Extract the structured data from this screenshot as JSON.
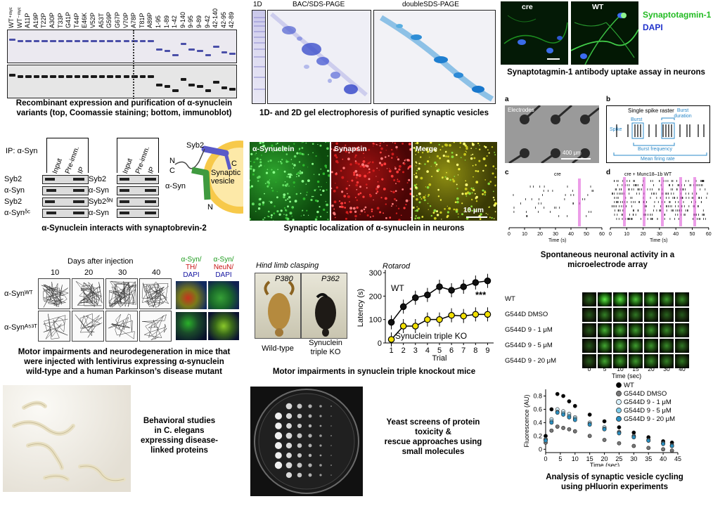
{
  "panels": {
    "gel_variants": {
      "lane_labels": [
        "WT⁺ᵐʸᶜ",
        "WT⁻ᵐʸᶜ",
        "A11P",
        "A19P",
        "T22P",
        "A30P",
        "T33P",
        "G41P",
        "T44P",
        "E46K",
        "V52P",
        "A53T",
        "G59P",
        "G67P",
        "V70P",
        "A78P",
        "T81P",
        "A89P",
        "1-95",
        "1-89",
        "1-42",
        "9-140",
        "9-95",
        "9-89",
        "9-42",
        "42-140",
        "42-95",
        "42-89"
      ],
      "caption_line1": "Recombinant expression and purification of α-synuclein",
      "caption_line2": "variants (top, Coomassie staining; bottom, immunoblot)"
    },
    "gel_2d": {
      "label_1d": "1D",
      "label_bac": "BAC/SDS-PAGE",
      "label_double": "doubleSDS-PAGE",
      "caption": "1D- and 2D gel electrophoresis of purified synaptic vesicles"
    },
    "synaptotagmin": {
      "label_cre": "cre",
      "label_wt": "WT",
      "legend_syt": "Synaptotagmin-1",
      "legend_dapi": "DAPI",
      "caption": "Synaptotagmin-1 antibody uptake assay in neurons"
    },
    "ip": {
      "ip_label": "IP: α-Syn",
      "col_labels": [
        "Input",
        "Pre-imm.",
        "IP"
      ],
      "rows_left": [
        "Syb2",
        "α-Syn",
        "Syb2",
        "α-Synᵟᶜ"
      ],
      "rows_right": [
        "Syb2",
        "α-Syn",
        "Syb2ᵟᴺ",
        "α-Syn"
      ],
      "schematic_syb2": "Syb2",
      "schematic_n": "N",
      "schematic_c": "C",
      "schematic_asyn": "α-Syn",
      "schematic_c2": "C",
      "schematic_n2": "N",
      "schematic_vesicle": "Synaptic vesicle",
      "caption": "α-Synuclein interacts with synaptobrevin-2"
    },
    "localization": {
      "label_asyn": "α-Synuclein",
      "label_synapsin": "Synapsin",
      "label_merge": "Merge",
      "scale": "10 μm",
      "caption": "Synaptic localization of α-synuclein in neurons"
    },
    "mea": {
      "label_a": "a",
      "label_b": "b",
      "label_c": "c",
      "label_d": "d",
      "electrodes": "Electrodes",
      "scale_a": "400 μm",
      "raster_title": "Single spike raster",
      "spike": "Spike",
      "burst": "Burst",
      "burst_duration": "Burst duration",
      "burst_frequency": "Burst frequency",
      "mean_firing": "Mean firing rate",
      "title_c": "cre",
      "title_d": "cre + Munc18–1b WT",
      "time_label": "Time (s)",
      "ticks": [
        "0",
        "10",
        "20",
        "30",
        "40",
        "50",
        "60"
      ],
      "caption_line1": "Spontaneous neuronal activity in a",
      "caption_line2": "microelectrode array"
    },
    "motor": {
      "days_label": "Days after injection",
      "days": [
        "10",
        "20",
        "30",
        "40"
      ],
      "row_wt": "α-Synᵂᵀ",
      "row_mut": "α-Synᴬ⁵³ᵀ",
      "stain1_a": "α-Syn/",
      "stain1_b": "TH/",
      "stain1_c": "DAPI",
      "stain2_a": "α-Syn/",
      "stain2_b": "NeuN/",
      "stain2_c": "DAPI",
      "caption_line1": "Motor impairments and neurodegeneration in mice that",
      "caption_line2": "were injected with lentivirus expressing α-synuclein",
      "caption_line3": "wild-type and a human Parkinson’s disease mutant"
    },
    "clasping": {
      "title": "Hind limb clasping",
      "age_left": "P380",
      "age_right": "P362",
      "label_left": "Wild-type",
      "label_right_1": "Synuclein",
      "label_right_2": "triple KO",
      "caption": "Motor impairments in synuclein triple knockout mice"
    },
    "rotarod": {
      "title": "Rotarod",
      "wt_label": "WT",
      "ko_label": "Synuclein triple KO",
      "significance": "***"
    },
    "phluorin_images": {
      "rows": [
        "WT",
        "G544D DMSO",
        "G544D 9 - 1 μM",
        "G544D 9 - 5 μM",
        "G544D 9 - 20 μM"
      ],
      "time_ticks": [
        "0",
        "5",
        "10",
        "15",
        "20",
        "30",
        "40"
      ],
      "time_label": "Time (sec)"
    },
    "phluorin_caption_line1": "Analysis of synaptic vesicle cycling",
    "phluorin_caption_line2": "using pHluorin experiments",
    "celegans": {
      "caption_line1": "Behavioral studies",
      "caption_line2": "in C. elegans",
      "caption_line3": "expressing disease-",
      "caption_line4": "linked proteins"
    },
    "yeast": {
      "caption_line1": "Yeast screens of protein",
      "caption_line2": "toxicity &",
      "caption_line3": "rescue approaches using",
      "caption_line4": "small molecules"
    }
  },
  "chart_data": [
    {
      "type": "line",
      "title": "Rotarod",
      "xlabel": "Trial",
      "ylabel": "Latency (s)",
      "x": [
        1,
        2,
        3,
        4,
        5,
        6,
        7,
        8,
        9
      ],
      "xlim": [
        0.5,
        9.5
      ],
      "ylim": [
        0,
        300
      ],
      "yticks": [
        0,
        100,
        200,
        300
      ],
      "series": [
        {
          "name": "WT",
          "values": [
            88,
            155,
            193,
            205,
            240,
            225,
            240,
            258,
            265
          ],
          "color": "#111111"
        },
        {
          "name": "Synuclein triple KO",
          "values": [
            15,
            72,
            72,
            100,
            100,
            118,
            115,
            122,
            122
          ],
          "color": "#f2e000"
        }
      ],
      "grid": false,
      "legend": "inline"
    },
    {
      "type": "scatter",
      "xlabel": "Time (sec)",
      "ylabel": "Fluorescence (AU)",
      "xlim": [
        0,
        45
      ],
      "ylim": [
        -0.05,
        0.9
      ],
      "xticks": [
        0,
        5,
        10,
        15,
        20,
        25,
        30,
        35,
        40,
        45
      ],
      "yticks": [
        0,
        0.2,
        0.4,
        0.6,
        0.8
      ],
      "legend": "top-right",
      "grid": false,
      "series": [
        {
          "name": "WT",
          "color": "#000000",
          "x": [
            0,
            2,
            4,
            6,
            8,
            10,
            15,
            20,
            25,
            30,
            35,
            40,
            43
          ],
          "values": [
            0.2,
            0.6,
            0.83,
            0.8,
            0.72,
            0.65,
            0.52,
            0.42,
            0.33,
            0.25,
            0.18,
            0.12,
            0.1
          ]
        },
        {
          "name": "G544D DMSO",
          "color": "#777777",
          "x": [
            0,
            2,
            4,
            6,
            8,
            10,
            15,
            20,
            25,
            30,
            35,
            40,
            43
          ],
          "values": [
            0.1,
            0.28,
            0.34,
            0.32,
            0.3,
            0.27,
            0.2,
            0.14,
            0.09,
            0.05,
            0.02,
            0.0,
            -0.02
          ]
        },
        {
          "name": "G544D 9 - 1 μM",
          "color": "#d8f0fa",
          "x": [
            0,
            2,
            4,
            6,
            8,
            10,
            15,
            20,
            25,
            30,
            35,
            40,
            43
          ],
          "values": [
            0.15,
            0.45,
            0.6,
            0.57,
            0.53,
            0.48,
            0.4,
            0.33,
            0.26,
            0.2,
            0.14,
            0.09,
            0.06
          ]
        },
        {
          "name": "G544D 9 - 5 μM",
          "color": "#7fcbe8",
          "x": [
            0,
            2,
            4,
            6,
            8,
            10,
            15,
            20,
            25,
            30,
            35,
            40,
            43
          ],
          "values": [
            0.14,
            0.42,
            0.56,
            0.54,
            0.5,
            0.46,
            0.38,
            0.31,
            0.25,
            0.19,
            0.13,
            0.09,
            0.05
          ]
        },
        {
          "name": "G544D 9 - 20 μM",
          "color": "#2b8fc0",
          "x": [
            0,
            2,
            4,
            6,
            8,
            10,
            15,
            20,
            25,
            30,
            35,
            40,
            43
          ],
          "values": [
            0.13,
            0.4,
            0.55,
            0.52,
            0.48,
            0.44,
            0.37,
            0.3,
            0.24,
            0.18,
            0.13,
            0.08,
            0.05
          ]
        }
      ]
    }
  ]
}
